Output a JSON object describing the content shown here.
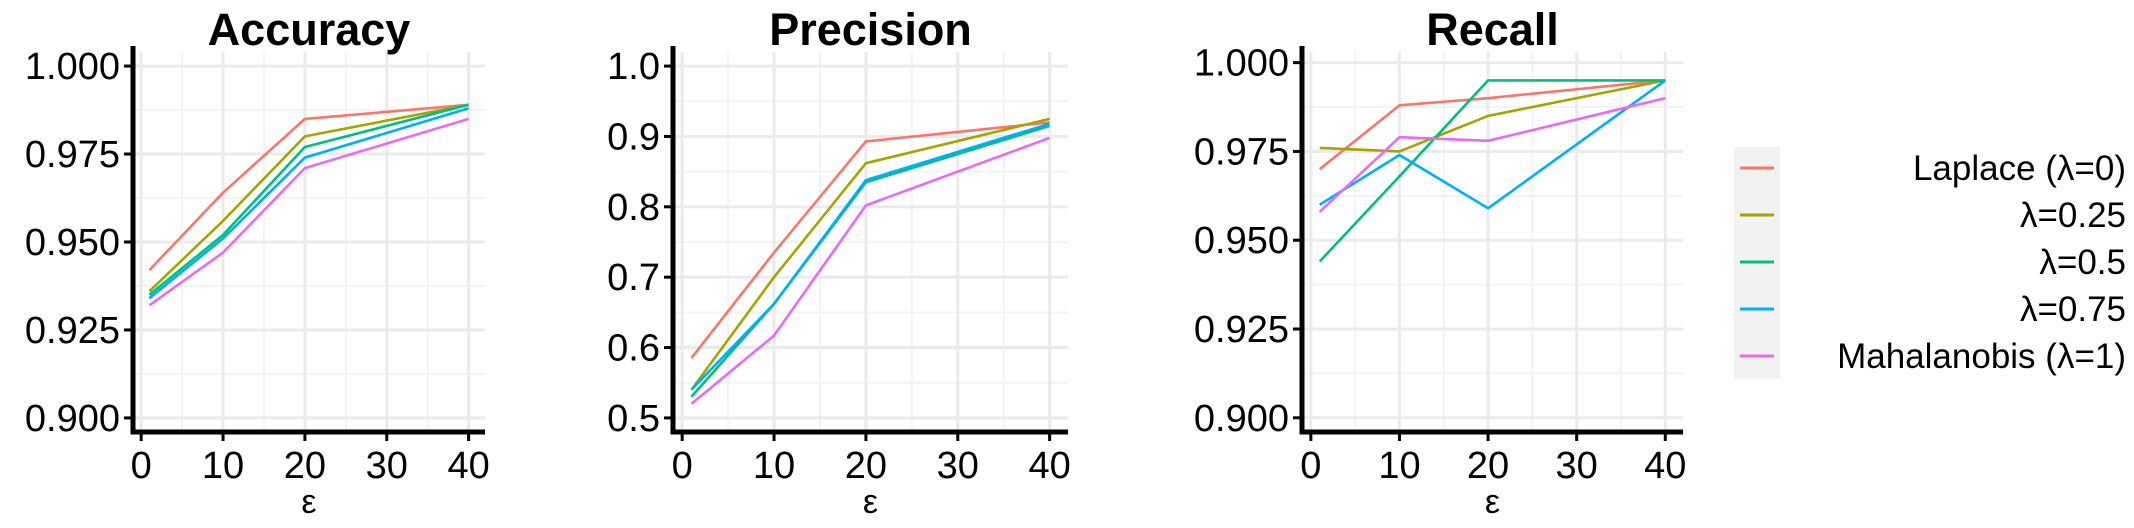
{
  "legend": {
    "entries": [
      {
        "label": "Laplace (λ=0)",
        "color": "#F8766D"
      },
      {
        "label": "λ=0.25",
        "color": "#A3A500"
      },
      {
        "label": "λ=0.5",
        "color": "#00BF7D"
      },
      {
        "label": "λ=0.75",
        "color": "#00B0F6"
      },
      {
        "label": "Mahalanobis (λ=1)",
        "color": "#E76BF3"
      }
    ]
  },
  "chart_data": [
    {
      "type": "line",
      "title": "Accuracy",
      "xlabel": "ε",
      "ylabel": "",
      "x": [
        1,
        10,
        20,
        40
      ],
      "xlim": [
        -1,
        42
      ],
      "xticks": [
        0,
        10,
        20,
        30,
        40
      ],
      "ylim": [
        0.896,
        1.004
      ],
      "yticks": [
        0.9,
        0.925,
        0.95,
        0.975,
        1.0
      ],
      "ytick_labels": [
        "0.900",
        "0.925",
        "0.950",
        "0.975",
        "1.000"
      ],
      "grid": true,
      "series": [
        {
          "name": "Laplace (λ=0)",
          "values": [
            0.942,
            0.964,
            0.985,
            0.989
          ]
        },
        {
          "name": "λ=0.25",
          "values": [
            0.936,
            0.956,
            0.98,
            0.989
          ]
        },
        {
          "name": "λ=0.5",
          "values": [
            0.935,
            0.952,
            0.977,
            0.989
          ]
        },
        {
          "name": "λ=0.75",
          "values": [
            0.934,
            0.951,
            0.974,
            0.988
          ]
        },
        {
          "name": "Mahalanobis (λ=1)",
          "values": [
            0.932,
            0.947,
            0.971,
            0.985
          ]
        }
      ]
    },
    {
      "type": "line",
      "title": "Precision",
      "xlabel": "ε",
      "ylabel": "",
      "x": [
        1,
        10,
        20,
        40
      ],
      "xlim": [
        -1,
        42
      ],
      "xticks": [
        0,
        10,
        20,
        30,
        40
      ],
      "ylim": [
        0.48,
        1.02
      ],
      "yticks": [
        0.5,
        0.6,
        0.7,
        0.8,
        0.9,
        1.0
      ],
      "ytick_labels": [
        "0.5",
        "0.6",
        "0.7",
        "0.8",
        "0.9",
        "1.0"
      ],
      "grid": true,
      "series": [
        {
          "name": "Laplace (λ=0)",
          "values": [
            0.585,
            0.735,
            0.893,
            0.92
          ]
        },
        {
          "name": "λ=0.25",
          "values": [
            0.54,
            0.7,
            0.862,
            0.925
          ]
        },
        {
          "name": "λ=0.5",
          "values": [
            0.53,
            0.662,
            0.835,
            0.915
          ]
        },
        {
          "name": "λ=0.75",
          "values": [
            0.54,
            0.662,
            0.838,
            0.918
          ]
        },
        {
          "name": "Mahalanobis (λ=1)",
          "values": [
            0.52,
            0.617,
            0.802,
            0.898
          ]
        }
      ]
    },
    {
      "type": "line",
      "title": "Recall",
      "xlabel": "ε",
      "ylabel": "",
      "x": [
        1,
        10,
        20,
        40
      ],
      "xlim": [
        -1,
        42
      ],
      "xticks": [
        0,
        10,
        20,
        30,
        40
      ],
      "ylim": [
        0.896,
        1.003
      ],
      "yticks": [
        0.9,
        0.925,
        0.95,
        0.975,
        1.0
      ],
      "ytick_labels": [
        "0.900",
        "0.925",
        "0.950",
        "0.975",
        "1.000"
      ],
      "grid": true,
      "series": [
        {
          "name": "Laplace (λ=0)",
          "values": [
            0.97,
            0.988,
            0.99,
            0.995
          ]
        },
        {
          "name": "λ=0.25",
          "values": [
            0.976,
            0.975,
            0.985,
            0.995
          ]
        },
        {
          "name": "λ=0.5",
          "values": [
            0.944,
            0.968,
            0.995,
            0.995
          ]
        },
        {
          "name": "λ=0.75",
          "values": [
            0.96,
            0.974,
            0.959,
            0.995
          ]
        },
        {
          "name": "Mahalanobis (λ=1)",
          "values": [
            0.958,
            0.979,
            0.978,
            0.99
          ]
        }
      ]
    }
  ]
}
